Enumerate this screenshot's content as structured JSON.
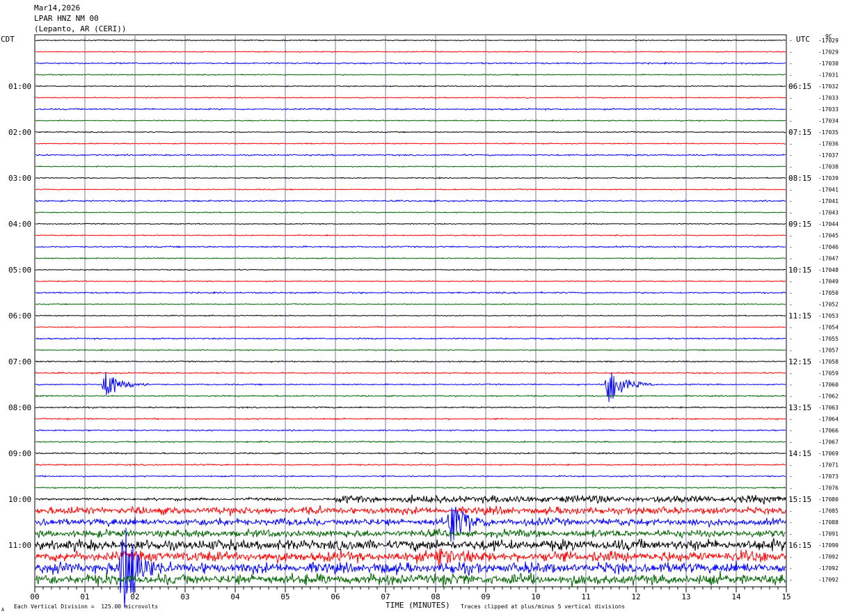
{
  "header": {
    "date": "Mar14,2026",
    "station": "LPAR HNZ NM 00",
    "location": "(Lepanto, AR (CERI))"
  },
  "left_timezone": "CDT",
  "right_timezone": "UTC",
  "corner_label": "9C",
  "footer": {
    "scale_note": "Each Vertical Division =  125.00 microvolts",
    "xlabel": "TIME (MINUTES)",
    "clip_note": "Traces clipped at plus/minus 5 vertical divisions",
    "corner_mark": "A"
  },
  "chart_data": {
    "type": "line",
    "title": "LPAR HNZ NM 00",
    "xlabel": "TIME (MINUTES)",
    "x_range": [
      0,
      15
    ],
    "x_ticks": [
      "00",
      "01",
      "02",
      "03",
      "04",
      "05",
      "06",
      "07",
      "08",
      "09",
      "10",
      "11",
      "12",
      "13",
      "14",
      "15"
    ],
    "trace_colors": [
      "#000000",
      "#ff0000",
      "#0000ff",
      "#006400"
    ],
    "left_hour_labels": [
      "01:00",
      "02:00",
      "03:00",
      "04:00",
      "05:00",
      "06:00",
      "07:00",
      "08:00",
      "09:00",
      "10:00",
      "11:00"
    ],
    "right_hour_labels": [
      "06:15",
      "07:15",
      "08:15",
      "09:15",
      "10:15",
      "11:15",
      "12:15",
      "13:15",
      "14:15",
      "15:15",
      "16:15"
    ],
    "trace_offsets": [
      "-17029",
      "-17029",
      "-17030",
      "-17031",
      "-17032",
      "-17033",
      "-17033",
      "-17034",
      "-17035",
      "-17036",
      "-17037",
      "-17038",
      "-17039",
      "-17041",
      "-17041",
      "-17043",
      "-17044",
      "-17045",
      "-17046",
      "-17047",
      "-17048",
      "-17049",
      "-17050",
      "-17052",
      "-17053",
      "-17054",
      "-17055",
      "-17057",
      "-17058",
      "-17059",
      "-17060",
      "-17062",
      "-17063",
      "-17064",
      "-17066",
      "-17067",
      "-17069",
      "-17071",
      "-17073",
      "-17076",
      "-17080",
      "-17085",
      "-17088",
      "-17091",
      "-17090",
      "-17092",
      "-17092",
      "-17092"
    ],
    "events": [
      {
        "trace": 30,
        "minute": 1.4,
        "amplitude_divisions": 1.4
      },
      {
        "trace": 30,
        "minute": 11.45,
        "amplitude_divisions": 2.0
      },
      {
        "trace": 42,
        "minute": 8.3,
        "amplitude_divisions": 2.3
      },
      {
        "trace": 45,
        "minute": 8.05,
        "amplitude_divisions": 1.3
      },
      {
        "trace": 46,
        "minute": 1.75,
        "amplitude_divisions": 5
      }
    ],
    "grid": true,
    "scale_microvolts_per_division": 125.0,
    "clip_divisions": 5
  }
}
